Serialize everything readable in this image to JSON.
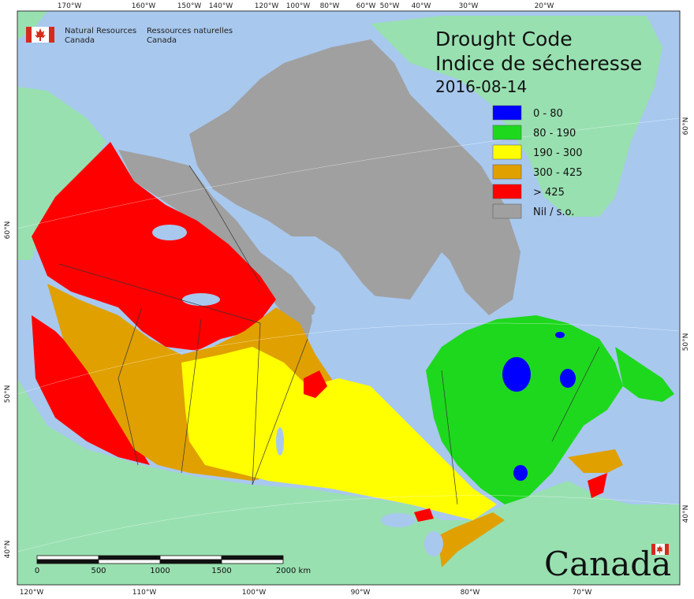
{
  "header": {
    "agency_en_line1": "Natural Resources",
    "agency_en_line2": "Canada",
    "agency_fr_line1": "Ressources naturelles",
    "agency_fr_line2": "Canada"
  },
  "title_en": "Drought Code",
  "title_fr": "Indice de sécheresse",
  "date": "2016-08-14",
  "legend": [
    {
      "label": "0 - 80",
      "color": "#0000ff"
    },
    {
      "label": "80 - 190",
      "color": "#1ed81e"
    },
    {
      "label": "190 - 300",
      "color": "#ffff00"
    },
    {
      "label": "300 - 425",
      "color": "#e0a000"
    },
    {
      "label": "> 425",
      "color": "#ff0000"
    },
    {
      "label": "Nil / s.o.",
      "color": "#a0a0a0"
    }
  ],
  "top_ticks": [
    "170°W",
    "160°W",
    "150°W",
    "140°W",
    "120°W",
    "100°W",
    "80°W",
    "60°W",
    "50°W",
    "40°W",
    "30°W",
    "20°W"
  ],
  "bottom_ticks": [
    "120°W",
    "110°W",
    "100°W",
    "90°W",
    "80°W",
    "70°W"
  ],
  "left_ticks": [
    "60°N",
    "50°N",
    "40°N"
  ],
  "right_ticks": [
    "60°N",
    "50°N",
    "40°N"
  ],
  "scale_bar": {
    "labels": [
      "0",
      "500",
      "1000",
      "1500",
      "2000 km"
    ]
  },
  "wordmark": "Canada",
  "colors": {
    "ocean": "#a8c8ee",
    "land": "#98e0b0",
    "nil": "#a0a0a0"
  }
}
